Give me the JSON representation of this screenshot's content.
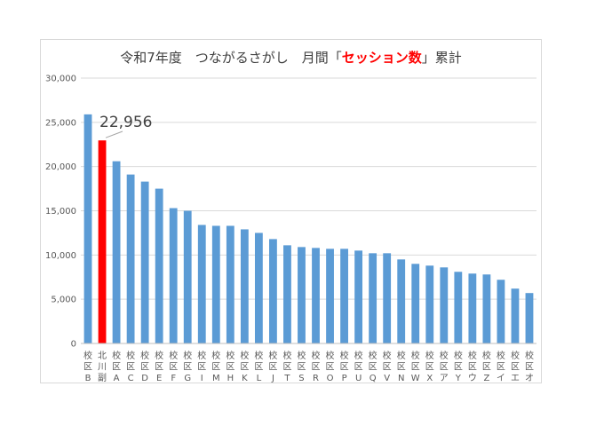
{
  "chart_data": {
    "type": "bar",
    "title_parts": {
      "before": "令和7年度　つながるさがし　月間「",
      "highlight": "セッション数",
      "after": "」累計"
    },
    "categories": [
      "校区B",
      "北川副",
      "校区A",
      "校区C",
      "校区D",
      "校区E",
      "校区F",
      "校区G",
      "校区I",
      "校区M",
      "校区H",
      "校区K",
      "校区L",
      "校区J",
      "校区T",
      "校区S",
      "校区R",
      "校区O",
      "校区P",
      "校区U",
      "校区Q",
      "校区V",
      "校区N",
      "校区W",
      "校区X",
      "校区ア",
      "校区Y",
      "校区ウ",
      "校区Z",
      "校区イ",
      "校区エ",
      "校区オ"
    ],
    "values": [
      25900,
      22956,
      20600,
      19100,
      18300,
      17500,
      15300,
      15000,
      13400,
      13300,
      13300,
      12900,
      12500,
      11800,
      11100,
      10900,
      10800,
      10700,
      10700,
      10500,
      10200,
      10200,
      9500,
      9000,
      8800,
      8600,
      8100,
      7900,
      7800,
      7200,
      6200,
      5700
    ],
    "highlight_index": 1,
    "annotation": "22,956",
    "y_ticks": [
      "0",
      "5,000",
      "10,000",
      "15,000",
      "20,000",
      "25,000",
      "30,000"
    ],
    "ylim": [
      0,
      30000
    ],
    "grid": true,
    "colors": {
      "bar": "#5b9bd5",
      "highlight": "#ff0000",
      "grid": "#d9d9d9",
      "axis": "#bfbfbf"
    }
  }
}
